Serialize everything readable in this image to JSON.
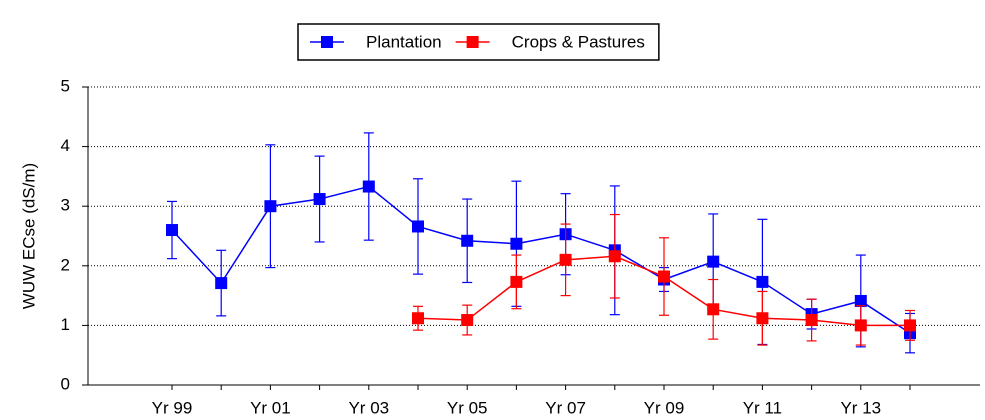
{
  "chart_data": {
    "type": "line",
    "y_label": "WUW ECse (dS/m)",
    "categories": [
      "Yr 99",
      null,
      "Yr 01",
      null,
      "Yr 03",
      null,
      "Yr 05",
      null,
      "Yr 07",
      null,
      "Yr 09",
      null,
      "Yr 11",
      null,
      "Yr 13",
      null
    ],
    "series": [
      {
        "name": "Plantation",
        "color": "#0000ff",
        "values": [
          2.6,
          1.71,
          3.0,
          3.12,
          3.33,
          2.66,
          2.42,
          2.37,
          2.53,
          2.26,
          1.77,
          2.07,
          1.73,
          1.19,
          1.41,
          0.87
        ],
        "errors": [
          0.48,
          0.55,
          1.03,
          0.72,
          0.9,
          0.8,
          0.7,
          1.05,
          0.68,
          1.08,
          0.2,
          0.8,
          1.05,
          0.25,
          0.77,
          0.33
        ]
      },
      {
        "name": "Crops & Pastures",
        "color": "#ff0000",
        "values": [
          null,
          null,
          null,
          null,
          null,
          1.12,
          1.09,
          1.73,
          2.1,
          2.16,
          1.82,
          1.27,
          1.12,
          1.09,
          1.0,
          1.0
        ],
        "errors": [
          null,
          null,
          null,
          null,
          null,
          0.2,
          0.25,
          0.45,
          0.6,
          0.7,
          0.65,
          0.5,
          0.45,
          0.35,
          0.33,
          0.25
        ]
      }
    ],
    "ylim": [
      0,
      5
    ],
    "yticks": [
      0,
      1,
      2,
      3,
      4,
      5
    ],
    "grid": true,
    "legend": "top"
  }
}
